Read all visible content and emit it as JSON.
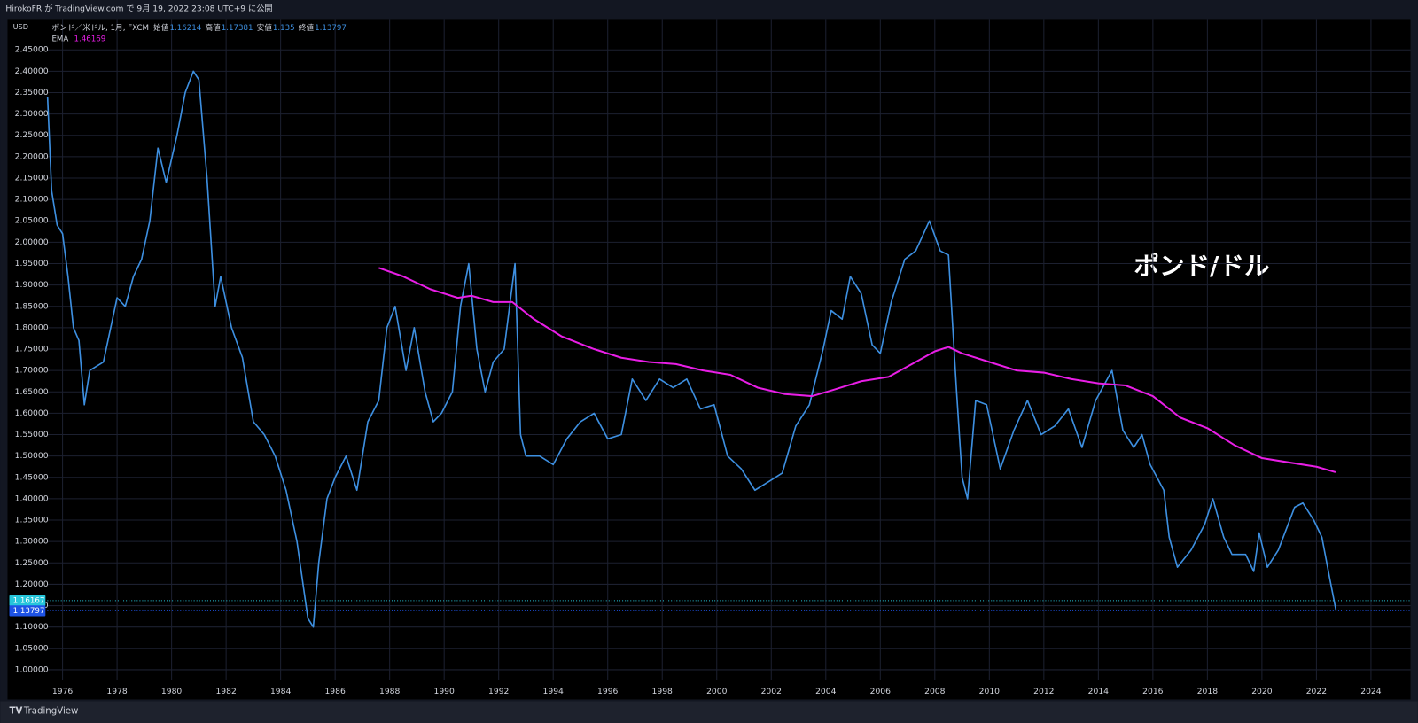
{
  "header": {
    "text": "HirokoFR が TradingView.com で 9月 19, 2022 23:08 UTC+9 に公開"
  },
  "footer": {
    "brand": "TradingView"
  },
  "chart_data": {
    "type": "line",
    "title": "ポンド／米ドル, 1月, FXCM",
    "annotation": "ポンド/ドル",
    "y_axis_label": "USD",
    "ohlc": [
      {
        "label": "始値",
        "value": 1.16214
      },
      {
        "label": "高値",
        "value": 1.17381
      },
      {
        "label": "安値",
        "value": 1.135
      },
      {
        "label": "終値",
        "value": 1.13797
      }
    ],
    "indicator": {
      "label": "EMA",
      "value": 1.46169,
      "color": "#e91ee6"
    },
    "price_lines": [
      {
        "value": 1.16167,
        "color": "#26c6da"
      },
      {
        "value": 1.13797,
        "color": "#1e53e5"
      }
    ],
    "xlim": [
      1975.44,
      2025.45
    ],
    "ylim": [
      0.977,
      2.52
    ],
    "grid": true,
    "xticks": [
      1976,
      1978,
      1980,
      1982,
      1984,
      1986,
      1988,
      1990,
      1992,
      1994,
      1996,
      1998,
      2000,
      2002,
      2004,
      2006,
      2008,
      2010,
      2012,
      2014,
      2016,
      2018,
      2020,
      2022,
      2024
    ],
    "yticks": [
      {
        "value": 1.0,
        "label": "1.00000"
      },
      {
        "value": 1.05,
        "label": "1.05000"
      },
      {
        "value": 1.1,
        "label": "1.10000"
      },
      {
        "value": 1.15,
        "label": "1.15000"
      },
      {
        "value": 1.2,
        "label": "1.20000"
      },
      {
        "value": 1.25,
        "label": "1.25000"
      },
      {
        "value": 1.3,
        "label": "1.30000"
      },
      {
        "value": 1.35,
        "label": "1.35000"
      },
      {
        "value": 1.4,
        "label": "1.40000"
      },
      {
        "value": 1.45,
        "label": "1.45000"
      },
      {
        "value": 1.5,
        "label": "1.50000"
      },
      {
        "value": 1.55,
        "label": "1.55000"
      },
      {
        "value": 1.6,
        "label": "1.60000"
      },
      {
        "value": 1.65,
        "label": "1.65000"
      },
      {
        "value": 1.7,
        "label": "1.70000"
      },
      {
        "value": 1.75,
        "label": "1.75000"
      },
      {
        "value": 1.8,
        "label": "1.80000"
      },
      {
        "value": 1.85,
        "label": "1.85000"
      },
      {
        "value": 1.9,
        "label": "1.90000"
      },
      {
        "value": 1.95,
        "label": "1.95000"
      },
      {
        "value": 2.0,
        "label": "2.00000"
      },
      {
        "value": 2.05,
        "label": "2.05000"
      },
      {
        "value": 2.1,
        "label": "2.10000"
      },
      {
        "value": 2.15,
        "label": "2.15000"
      },
      {
        "value": 2.2,
        "label": "2.20000"
      },
      {
        "value": 2.25,
        "label": "2.25000"
      },
      {
        "value": 2.3,
        "label": "2.30000"
      },
      {
        "value": 2.35,
        "label": "2.35000"
      },
      {
        "value": 2.4,
        "label": "2.40000"
      },
      {
        "value": 2.45,
        "label": "2.45000"
      }
    ],
    "series": [
      {
        "color": "#3d8fe0",
        "x": [
          1975.45,
          1975.6,
          1975.8,
          1976.0,
          1976.2,
          1976.4,
          1976.6,
          1976.8,
          1977.0,
          1977.5,
          1978.0,
          1978.3,
          1978.6,
          1978.9,
          1979.2,
          1979.5,
          1979.8,
          1980.2,
          1980.5,
          1980.8,
          1981.0,
          1981.3,
          1981.6,
          1981.8,
          1982.2,
          1982.6,
          1983.0,
          1983.4,
          1983.8,
          1984.2,
          1984.6,
          1985.0,
          1985.2,
          1985.4,
          1985.7,
          1986.0,
          1986.4,
          1986.8,
          1987.2,
          1987.6,
          1987.9,
          1988.2,
          1988.6,
          1988.9,
          1989.3,
          1989.6,
          1989.9,
          1990.3,
          1990.6,
          1990.9,
          1991.2,
          1991.5,
          1991.8,
          1992.2,
          1992.6,
          1992.8,
          1993.0,
          1993.5,
          1994.0,
          1994.5,
          1995.0,
          1995.5,
          1996.0,
          1996.5,
          1996.9,
          1997.4,
          1997.9,
          1998.4,
          1998.9,
          1999.4,
          1999.9,
          2000.4,
          2000.9,
          2001.4,
          2001.9,
          2002.4,
          2002.9,
          2003.4,
          2003.9,
          2004.2,
          2004.6,
          2004.9,
          2005.3,
          2005.7,
          2006.0,
          2006.4,
          2006.9,
          2007.3,
          2007.8,
          2008.2,
          2008.5,
          2008.8,
          2009.0,
          2009.2,
          2009.5,
          2009.9,
          2010.4,
          2010.9,
          2011.4,
          2011.9,
          2012.4,
          2012.9,
          2013.4,
          2013.9,
          2014.5,
          2014.9,
          2015.3,
          2015.6,
          2015.9,
          2016.4,
          2016.6,
          2016.9,
          2017.4,
          2017.9,
          2018.2,
          2018.6,
          2018.9,
          2019.4,
          2019.7,
          2019.9,
          2020.2,
          2020.6,
          2020.9,
          2021.2,
          2021.5,
          2021.9,
          2022.2,
          2022.5,
          2022.72
        ],
        "values": [
          2.34,
          2.12,
          2.04,
          2.02,
          1.92,
          1.8,
          1.77,
          1.62,
          1.7,
          1.72,
          1.87,
          1.85,
          1.92,
          1.96,
          2.05,
          2.22,
          2.14,
          2.25,
          2.35,
          2.4,
          2.38,
          2.15,
          1.85,
          1.92,
          1.8,
          1.73,
          1.58,
          1.55,
          1.5,
          1.42,
          1.3,
          1.12,
          1.1,
          1.25,
          1.4,
          1.45,
          1.5,
          1.42,
          1.58,
          1.63,
          1.8,
          1.85,
          1.7,
          1.8,
          1.65,
          1.58,
          1.6,
          1.65,
          1.85,
          1.95,
          1.75,
          1.65,
          1.72,
          1.75,
          1.95,
          1.55,
          1.5,
          1.5,
          1.48,
          1.54,
          1.58,
          1.6,
          1.54,
          1.55,
          1.68,
          1.63,
          1.68,
          1.66,
          1.68,
          1.61,
          1.62,
          1.5,
          1.47,
          1.42,
          1.44,
          1.46,
          1.57,
          1.62,
          1.75,
          1.84,
          1.82,
          1.92,
          1.88,
          1.76,
          1.74,
          1.86,
          1.96,
          1.98,
          2.05,
          1.98,
          1.97,
          1.65,
          1.45,
          1.4,
          1.63,
          1.62,
          1.47,
          1.56,
          1.63,
          1.55,
          1.57,
          1.61,
          1.52,
          1.63,
          1.7,
          1.56,
          1.52,
          1.55,
          1.48,
          1.42,
          1.31,
          1.24,
          1.28,
          1.34,
          1.4,
          1.31,
          1.27,
          1.27,
          1.23,
          1.32,
          1.24,
          1.28,
          1.33,
          1.38,
          1.39,
          1.35,
          1.31,
          1.21,
          1.138
        ]
      },
      {
        "color": "#e91ee6",
        "x": [
          1987.6,
          1988.5,
          1989.5,
          1990.5,
          1991.0,
          1991.8,
          1992.5,
          1993.3,
          1994.3,
          1995.5,
          1996.5,
          1997.5,
          1998.5,
          1999.5,
          2000.5,
          2001.5,
          2002.5,
          2003.5,
          2004.3,
          2005.3,
          2006.3,
          2007.3,
          2008.0,
          2008.5,
          2009.0,
          2010.0,
          2011.0,
          2012.0,
          2013.0,
          2014.0,
          2015.0,
          2016.0,
          2017.0,
          2018.0,
          2019.0,
          2020.0,
          2021.0,
          2022.0,
          2022.7
        ],
        "values": [
          1.94,
          1.92,
          1.89,
          1.87,
          1.875,
          1.86,
          1.86,
          1.82,
          1.78,
          1.75,
          1.73,
          1.72,
          1.715,
          1.7,
          1.69,
          1.66,
          1.645,
          1.64,
          1.655,
          1.675,
          1.685,
          1.72,
          1.745,
          1.755,
          1.74,
          1.72,
          1.7,
          1.695,
          1.68,
          1.67,
          1.665,
          1.64,
          1.59,
          1.565,
          1.525,
          1.495,
          1.485,
          1.475,
          1.462
        ]
      }
    ]
  }
}
